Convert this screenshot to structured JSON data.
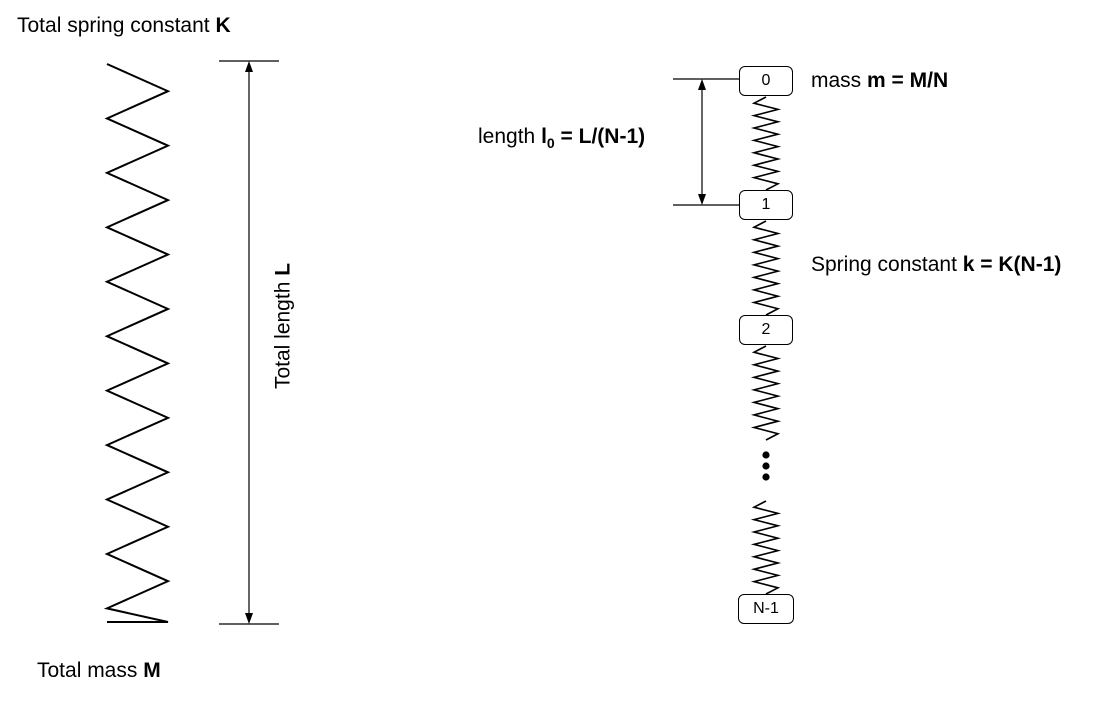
{
  "left": {
    "top_label": {
      "text": "Total spring constant ",
      "bold": "K"
    },
    "length_label": {
      "text": "Total length ",
      "bold": "L"
    },
    "bottom_label": {
      "text": "Total mass ",
      "bold": "M"
    }
  },
  "right": {
    "mass_label": {
      "text": "mass ",
      "bold": "m = M/N"
    },
    "length_label": {
      "text": "length ",
      "bold_main": "l",
      "bold_sub": "0",
      "bold_rest": " = L/(N-1)"
    },
    "spring_label": {
      "text": "Spring constant ",
      "bold": "k = K(N-1)"
    },
    "masses": [
      "0",
      "1",
      "2",
      "N-1"
    ],
    "ellipsis": "…"
  }
}
